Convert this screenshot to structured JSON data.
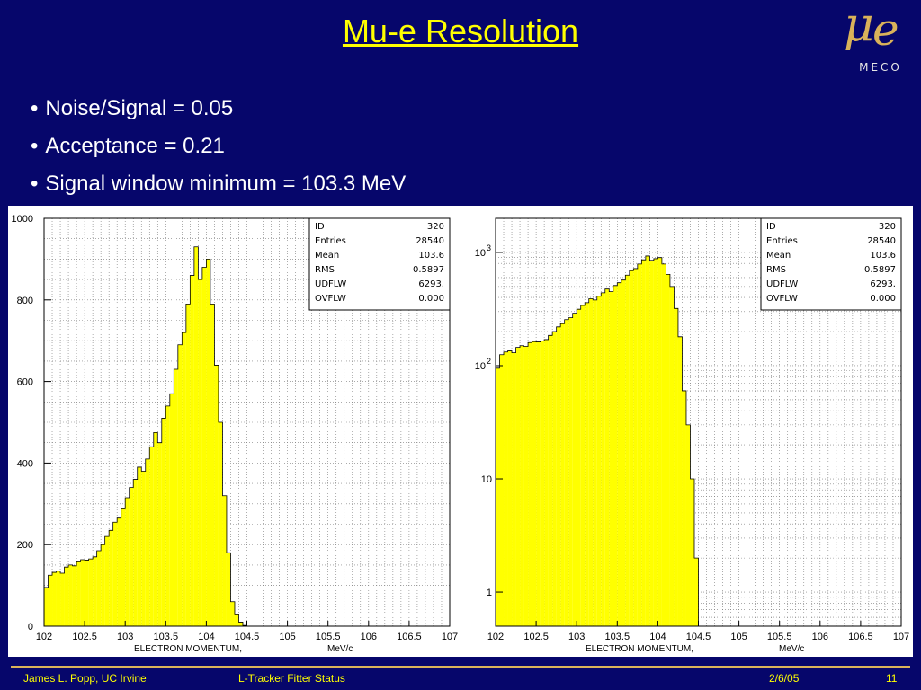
{
  "slide": {
    "title": "Mu-e Resolution",
    "logo_text": "MECO",
    "bullets": [
      "Noise/Signal = 0.05",
      "Acceptance = 0.21",
      "Signal window minimum = 103.3 MeV"
    ],
    "footer": {
      "author": "James L. Popp, UC Irvine",
      "subject": "L-Tracker Fitter Status",
      "date": "2/6/05",
      "page": "11"
    }
  },
  "colors": {
    "background": "#06066b",
    "title": "#ffff00",
    "histogram_fill": "#ffff00",
    "logo": "#d9b25a"
  },
  "chart_data": [
    {
      "type": "bar",
      "scale": "linear",
      "xlabel": "ELECTRON MOMENTUM,",
      "xunit": "MeV/c",
      "xlim": [
        102,
        107
      ],
      "ylim": [
        0,
        1000
      ],
      "x_ticks": [
        "102",
        "102.5",
        "103",
        "103.5",
        "104",
        "104.5",
        "105",
        "105.5",
        "106",
        "106.5",
        "107"
      ],
      "y_ticks": [
        "0",
        "200",
        "400",
        "600",
        "800",
        "1000"
      ],
      "grid": true,
      "bin_width": 0.05,
      "bin_start": 102,
      "values": [
        95,
        125,
        132,
        135,
        130,
        145,
        150,
        148,
        160,
        163,
        162,
        165,
        170,
        185,
        200,
        220,
        235,
        255,
        265,
        290,
        315,
        340,
        360,
        390,
        380,
        410,
        440,
        475,
        450,
        510,
        540,
        570,
        630,
        690,
        720,
        790,
        860,
        930,
        850,
        880,
        900,
        790,
        640,
        500,
        320,
        180,
        60,
        30,
        10,
        2
      ],
      "stats": [
        {
          "label": "ID",
          "value": "320"
        },
        {
          "label": "Entries",
          "value": "28540"
        },
        {
          "label": "Mean",
          "value": "103.6"
        },
        {
          "label": "RMS",
          "value": "0.5897"
        },
        {
          "label": "UDFLW",
          "value": "6293."
        },
        {
          "label": "OVFLW",
          "value": "0.000"
        }
      ]
    },
    {
      "type": "bar",
      "scale": "log",
      "xlabel": "ELECTRON MOMENTUM,",
      "xunit": "MeV/c",
      "xlim": [
        102,
        107
      ],
      "ylim": [
        0.5,
        2000
      ],
      "x_ticks": [
        "102",
        "102.5",
        "103",
        "103.5",
        "104",
        "104.5",
        "105",
        "105.5",
        "106",
        "106.5",
        "107"
      ],
      "y_ticks": [
        {
          "value": 1,
          "base": "1",
          "exp": ""
        },
        {
          "value": 10,
          "base": "10",
          "exp": ""
        },
        {
          "value": 100,
          "base": "10",
          "exp": "2"
        },
        {
          "value": 1000,
          "base": "10",
          "exp": "3"
        }
      ],
      "grid": true,
      "bin_width": 0.05,
      "bin_start": 102,
      "values": [
        95,
        125,
        132,
        135,
        130,
        145,
        150,
        148,
        160,
        163,
        162,
        165,
        170,
        185,
        200,
        220,
        235,
        255,
        265,
        290,
        315,
        340,
        360,
        390,
        380,
        410,
        440,
        475,
        450,
        510,
        540,
        570,
        630,
        690,
        720,
        790,
        860,
        930,
        850,
        880,
        900,
        790,
        640,
        500,
        320,
        180,
        60,
        30,
        10,
        2
      ],
      "stats": [
        {
          "label": "ID",
          "value": "320"
        },
        {
          "label": "Entries",
          "value": "28540"
        },
        {
          "label": "Mean",
          "value": "103.6"
        },
        {
          "label": "RMS",
          "value": "0.5897"
        },
        {
          "label": "UDFLW",
          "value": "6293."
        },
        {
          "label": "OVFLW",
          "value": "0.000"
        }
      ]
    }
  ]
}
